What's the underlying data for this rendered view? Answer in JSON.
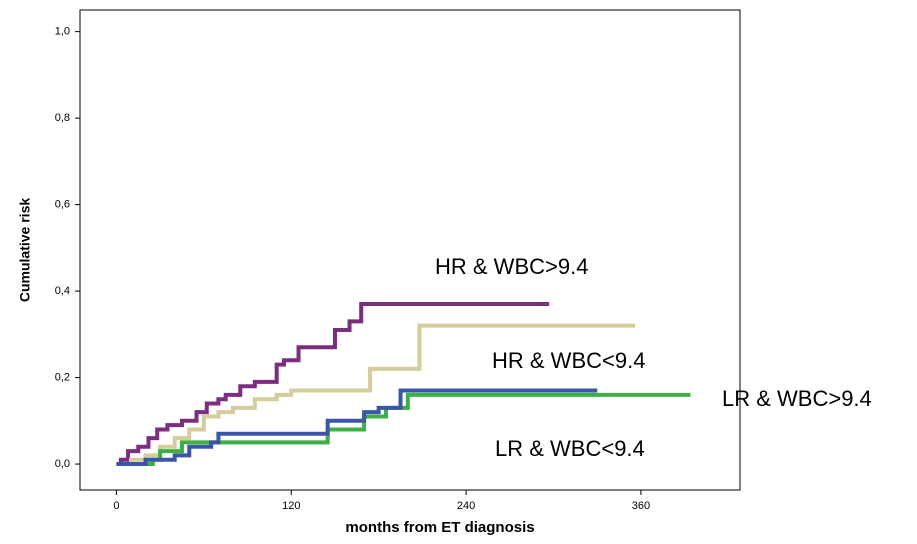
{
  "chart_data": {
    "type": "line",
    "step": true,
    "x_label": "months from ET diagnosis",
    "y_label": "Cumulative risk",
    "xlim": [
      -25,
      428
    ],
    "ylim": [
      -0.06,
      1.05
    ],
    "xticks": [
      0,
      120,
      240,
      360
    ],
    "yticks": [
      {
        "value": 0,
        "label": "0,0"
      },
      {
        "value": 0.2,
        "label": "0,2"
      },
      {
        "value": 0.4,
        "label": "0,4"
      },
      {
        "value": 0.6,
        "label": "0,6"
      },
      {
        "value": 0.8,
        "label": "0,8"
      },
      {
        "value": 1,
        "label": "1,0"
      }
    ],
    "series": [
      {
        "name": "HR & WBC>9.4",
        "color": "#7b2d7e",
        "x": [
          0,
          3,
          8,
          15,
          22,
          28,
          35,
          45,
          55,
          62,
          70,
          75,
          85,
          95,
          110,
          115,
          125,
          135,
          150,
          160,
          168,
          297
        ],
        "values": [
          0,
          0.01,
          0.03,
          0.04,
          0.06,
          0.08,
          0.09,
          0.1,
          0.12,
          0.14,
          0.15,
          0.16,
          0.18,
          0.19,
          0.23,
          0.24,
          0.27,
          0.27,
          0.31,
          0.33,
          0.37,
          0.37
        ]
      },
      {
        "name": "HR & WBC<9.4",
        "color": "#d4cc9a",
        "x": [
          0,
          10,
          20,
          30,
          40,
          50,
          60,
          70,
          80,
          95,
          110,
          120,
          174,
          208,
          356
        ],
        "values": [
          0,
          0.01,
          0.02,
          0.04,
          0.06,
          0.08,
          0.11,
          0.12,
          0.13,
          0.15,
          0.16,
          0.17,
          0.22,
          0.32,
          0.32
        ]
      },
      {
        "name": "LR & WBC>9.4",
        "color": "#3cb043",
        "x": [
          0,
          25,
          30,
          45,
          75,
          145,
          150,
          170,
          180,
          185,
          200,
          394
        ],
        "values": [
          0,
          0.01,
          0.03,
          0.05,
          0.05,
          0.08,
          0.08,
          0.11,
          0.11,
          0.13,
          0.16,
          0.16
        ]
      },
      {
        "name": "LR & WBC<9.4",
        "color": "#3a56a8",
        "x": [
          0,
          20,
          40,
          50,
          65,
          70,
          100,
          140,
          145,
          170,
          180,
          195,
          330
        ],
        "values": [
          0,
          0.01,
          0.02,
          0.04,
          0.05,
          0.07,
          0.07,
          0.07,
          0.1,
          0.12,
          0.13,
          0.17,
          0.17
        ]
      }
    ]
  }
}
